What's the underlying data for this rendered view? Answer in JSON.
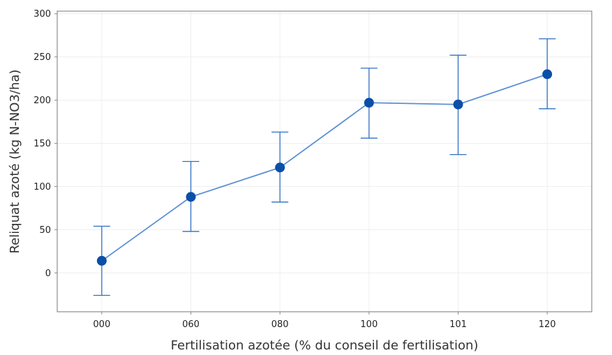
{
  "chart_data": {
    "type": "line",
    "title": "",
    "xlabel": "Fertilisation azotée (% du conseil de fertilisation)",
    "ylabel": "Reliquat azoté (kg N-NO3/ha)",
    "categories": [
      "000",
      "060",
      "080",
      "100",
      "101",
      "120"
    ],
    "series": [
      {
        "values": [
          14,
          88,
          122,
          197,
          195,
          230
        ],
        "error_low": [
          -26,
          48,
          82,
          156,
          137,
          190
        ],
        "error_high": [
          54,
          129,
          163,
          237,
          252,
          271
        ]
      }
    ],
    "ylim": [
      -45,
      303
    ],
    "yticks": [
      0,
      50,
      100,
      150,
      200,
      250,
      300
    ],
    "grid": true,
    "legend": "none",
    "colors": {
      "line": "#5b8fd4",
      "marker": "#0a4fa8",
      "errorbar": "#2e6fc2",
      "grid": "#eeeeee",
      "axis": "#8c8c8c"
    }
  }
}
